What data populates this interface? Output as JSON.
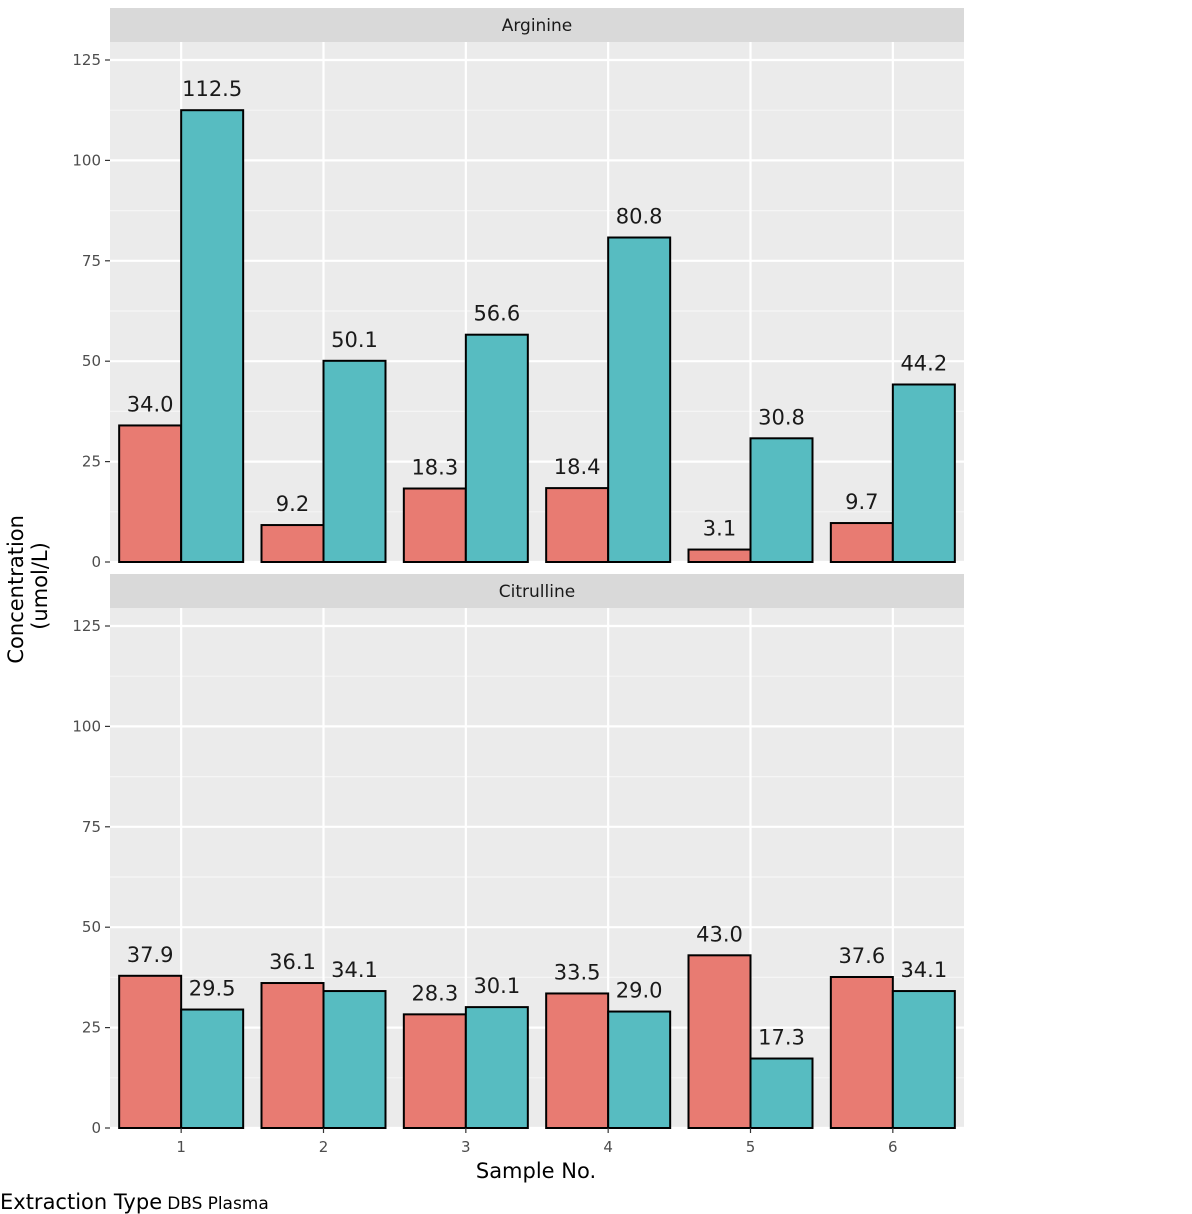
{
  "chart_data": {
    "type": "bar",
    "title": "",
    "xlabel": "Sample No.",
    "ylabel_lines": [
      "Concentration",
      "(umol/L)"
    ],
    "categories": [
      "1",
      "2",
      "3",
      "4",
      "5",
      "6"
    ],
    "ylim": [
      0,
      125
    ],
    "yticks": [
      0,
      25,
      50,
      75,
      100,
      125
    ],
    "grid": true,
    "legend": {
      "title": "Extraction Type",
      "placement": "right",
      "entries": [
        {
          "name": "DBS",
          "color": "#E87B72"
        },
        {
          "name": "Plasma",
          "color": "#57BCC1"
        }
      ]
    },
    "panels": [
      {
        "strip": "Arginine",
        "series": [
          {
            "name": "DBS",
            "color": "#E87B72",
            "values": [
              34.0,
              9.2,
              18.3,
              18.4,
              3.1,
              9.7
            ],
            "labels": [
              "34.0",
              "9.2",
              "18.3",
              "18.4",
              "3.1",
              "9.7"
            ]
          },
          {
            "name": "Plasma",
            "color": "#57BCC1",
            "values": [
              112.5,
              50.1,
              56.6,
              80.8,
              30.8,
              44.2
            ],
            "labels": [
              "112.5",
              "50.1",
              "56.6",
              "80.8",
              "30.8",
              "44.2"
            ]
          }
        ]
      },
      {
        "strip": "Citrulline",
        "series": [
          {
            "name": "DBS",
            "color": "#E87B72",
            "values": [
              37.9,
              36.1,
              28.3,
              33.5,
              43.0,
              37.6
            ],
            "labels": [
              "37.9",
              "36.1",
              "28.3",
              "33.5",
              "43.0",
              "37.6"
            ]
          },
          {
            "name": "Plasma",
            "color": "#57BCC1",
            "values": [
              29.5,
              34.1,
              30.1,
              29.0,
              17.3,
              34.1
            ],
            "labels": [
              "29.5",
              "34.1",
              "30.1",
              "29.0",
              "17.3",
              "34.1"
            ]
          }
        ]
      }
    ]
  }
}
